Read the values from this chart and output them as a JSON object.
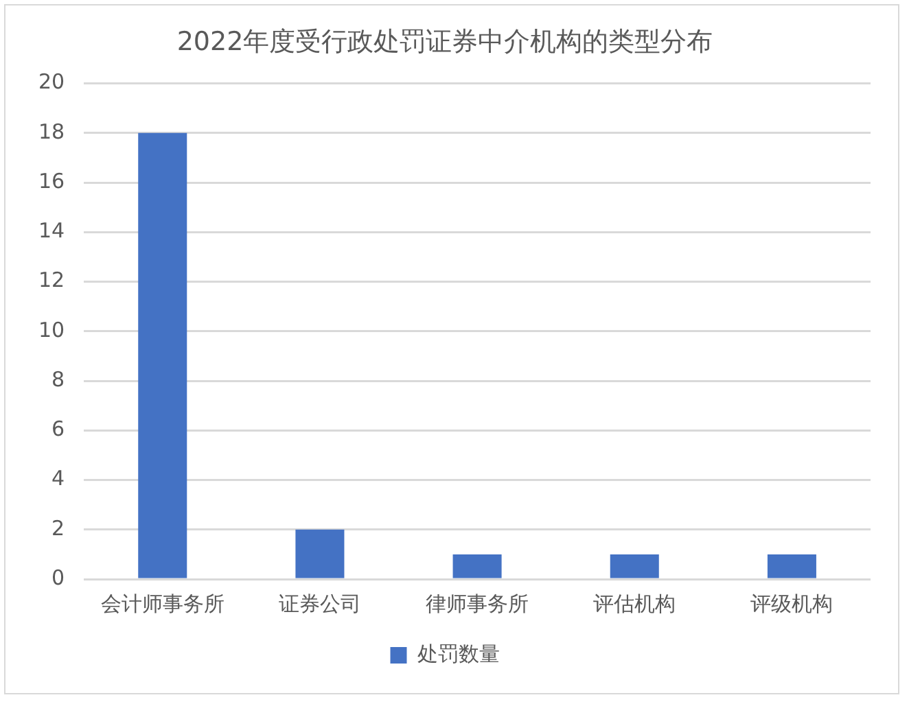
{
  "chart_data": {
    "type": "bar",
    "title": "2022年度受行政处罚证券中介机构的类型分布",
    "categories": [
      "会计师事务所",
      "证券公司",
      "律师事务所",
      "评估机构",
      "评级机构"
    ],
    "series": [
      {
        "name": "处罚数量",
        "color": "#4472c4",
        "values": [
          18,
          2,
          1,
          1,
          1
        ]
      }
    ],
    "ylim": [
      0,
      20
    ],
    "yticks": [
      0,
      2,
      4,
      6,
      8,
      10,
      12,
      14,
      16,
      18,
      20
    ],
    "grid": "y",
    "legend": "bottom"
  }
}
